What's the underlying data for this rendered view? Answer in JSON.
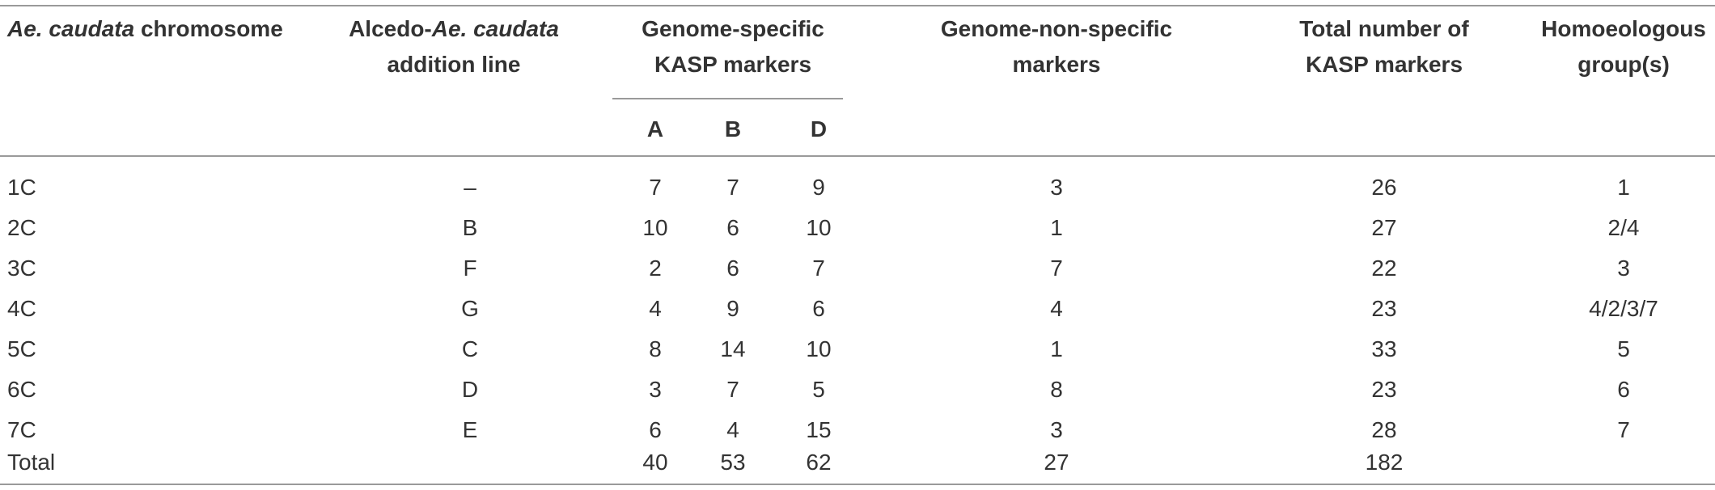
{
  "headers": {
    "chromosome_pre": "Ae. caudata",
    "chromosome_post": " chromosome",
    "addition_line_pre": "Alcedo-",
    "addition_line_italic": "Ae. caudata",
    "addition_line_line2": "addition line",
    "genome_specific_line1": "Genome-specific",
    "genome_specific_line2": "KASP markers",
    "sub_a": "A",
    "sub_b": "B",
    "sub_d": "D",
    "non_specific_line1": "Genome-non-specific",
    "non_specific_line2": "markers",
    "total_line1": "Total number of",
    "total_line2": "KASP markers",
    "homoeo_line1": "Homoeologous",
    "homoeo_line2": "group(s)"
  },
  "rows": [
    {
      "chromosome": "1C",
      "addition_line": "–",
      "a": "7",
      "b": "7",
      "d": "9",
      "non_specific": "3",
      "total": "26",
      "group": "1"
    },
    {
      "chromosome": "2C",
      "addition_line": "B",
      "a": "10",
      "b": "6",
      "d": "10",
      "non_specific": "1",
      "total": "27",
      "group": "2/4"
    },
    {
      "chromosome": "3C",
      "addition_line": "F",
      "a": "2",
      "b": "6",
      "d": "7",
      "non_specific": "7",
      "total": "22",
      "group": "3"
    },
    {
      "chromosome": "4C",
      "addition_line": "G",
      "a": "4",
      "b": "9",
      "d": "6",
      "non_specific": "4",
      "total": "23",
      "group": "4/2/3/7"
    },
    {
      "chromosome": "5C",
      "addition_line": "C",
      "a": "8",
      "b": "14",
      "d": "10",
      "non_specific": "1",
      "total": "33",
      "group": "5"
    },
    {
      "chromosome": "6C",
      "addition_line": "D",
      "a": "3",
      "b": "7",
      "d": "5",
      "non_specific": "8",
      "total": "23",
      "group": "6"
    },
    {
      "chromosome": "7C",
      "addition_line": "E",
      "a": "6",
      "b": "4",
      "d": "15",
      "non_specific": "3",
      "total": "28",
      "group": "7"
    },
    {
      "chromosome": "Total",
      "addition_line": "",
      "a": "40",
      "b": "53",
      "d": "62",
      "non_specific": "27",
      "total": "182",
      "group": ""
    }
  ]
}
